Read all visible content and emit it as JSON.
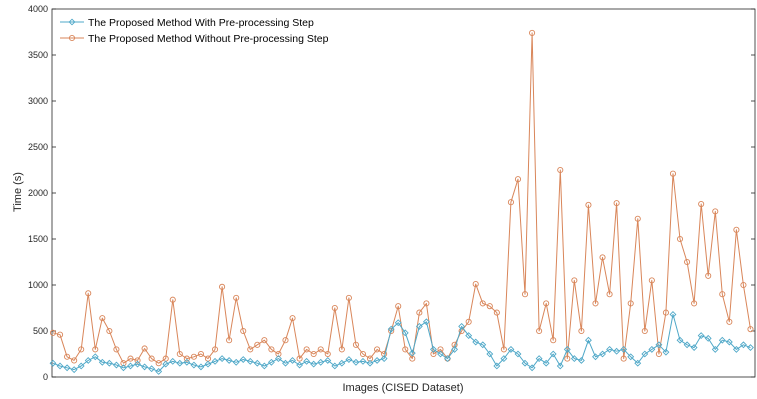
{
  "chart_data": {
    "type": "line",
    "title": "",
    "xlabel": "Images (CISED Dataset)",
    "ylabel": "Time (s)",
    "ylim": [
      0,
      4000
    ],
    "yticks": [
      0,
      500,
      1000,
      1500,
      2000,
      2500,
      3000,
      3500,
      4000
    ],
    "xlim": [
      1,
      200
    ],
    "grid": false,
    "legend": "top-left",
    "series": [
      {
        "name": "The Proposed Method With Pre-processing Step",
        "color": "#4fa8c8",
        "marker": "diamond",
        "x": [
          1,
          3,
          5,
          7,
          9,
          11,
          13,
          15,
          17,
          19,
          21,
          23,
          25,
          27,
          29,
          31,
          33,
          35,
          37,
          39,
          41,
          43,
          45,
          47,
          49,
          51,
          53,
          55,
          57,
          59,
          61,
          63,
          65,
          67,
          69,
          71,
          73,
          75,
          77,
          79,
          81,
          83,
          85,
          87,
          89,
          91,
          93,
          95,
          97,
          99,
          101,
          103,
          105,
          107,
          109,
          111,
          113,
          115,
          117,
          119,
          121,
          123,
          125,
          127,
          129,
          131,
          133,
          135,
          137,
          139,
          141,
          143,
          145,
          147,
          149,
          151,
          153,
          155,
          157,
          159,
          161,
          163,
          165,
          167,
          169,
          171,
          173,
          175,
          177,
          179,
          181,
          183,
          185,
          187,
          189,
          191,
          193,
          195,
          197,
          199
        ],
        "values": [
          150,
          120,
          100,
          80,
          120,
          180,
          220,
          160,
          150,
          130,
          100,
          120,
          140,
          110,
          90,
          60,
          140,
          170,
          150,
          160,
          130,
          110,
          140,
          170,
          200,
          180,
          160,
          190,
          170,
          150,
          120,
          160,
          200,
          150,
          180,
          130,
          170,
          140,
          160,
          180,
          120,
          150,
          190,
          160,
          170,
          150,
          180,
          200,
          520,
          590,
          480,
          260,
          550,
          600,
          300,
          250,
          200,
          300,
          550,
          450,
          380,
          350,
          250,
          120,
          200,
          300,
          250,
          150,
          100,
          200,
          150,
          250,
          120,
          300,
          200,
          180,
          400,
          220,
          250,
          300,
          280,
          300,
          220,
          150,
          250,
          300,
          350,
          270,
          680,
          400,
          350,
          320,
          450,
          420,
          300,
          400,
          380,
          300,
          350,
          320
        ]
      },
      {
        "name": "The Proposed Method Without Pre-processing Step",
        "color": "#d9865a",
        "marker": "circle",
        "x": [
          1,
          3,
          5,
          7,
          9,
          11,
          13,
          15,
          17,
          19,
          21,
          23,
          25,
          27,
          29,
          31,
          33,
          35,
          37,
          39,
          41,
          43,
          45,
          47,
          49,
          51,
          53,
          55,
          57,
          59,
          61,
          63,
          65,
          67,
          69,
          71,
          73,
          75,
          77,
          79,
          81,
          83,
          85,
          87,
          89,
          91,
          93,
          95,
          97,
          99,
          101,
          103,
          105,
          107,
          109,
          111,
          113,
          115,
          117,
          119,
          121,
          123,
          125,
          127,
          129,
          131,
          133,
          135,
          137,
          139,
          141,
          143,
          145,
          147,
          149,
          151,
          153,
          155,
          157,
          159,
          161,
          163,
          165,
          167,
          169,
          171,
          173,
          175,
          177,
          179,
          181,
          183,
          185,
          187,
          189,
          191,
          193,
          195,
          197,
          199
        ],
        "values": [
          480,
          460,
          220,
          180,
          300,
          910,
          300,
          640,
          500,
          300,
          150,
          200,
          180,
          310,
          200,
          150,
          200,
          840,
          250,
          200,
          220,
          250,
          200,
          300,
          980,
          400,
          860,
          500,
          300,
          350,
          400,
          300,
          250,
          400,
          640,
          200,
          300,
          250,
          300,
          250,
          750,
          300,
          860,
          350,
          250,
          200,
          300,
          250,
          500,
          770,
          300,
          200,
          700,
          800,
          250,
          300,
          200,
          350,
          500,
          600,
          1010,
          800,
          770,
          700,
          300,
          1900,
          2150,
          900,
          3740,
          500,
          800,
          400,
          2250,
          200,
          1050,
          500,
          1870,
          800,
          1300,
          900,
          1890,
          200,
          800,
          1720,
          500,
          1050,
          250,
          700,
          2210,
          1500,
          1250,
          800,
          1880,
          1100,
          1800,
          900,
          600,
          1600,
          1000,
          520
        ]
      }
    ]
  }
}
